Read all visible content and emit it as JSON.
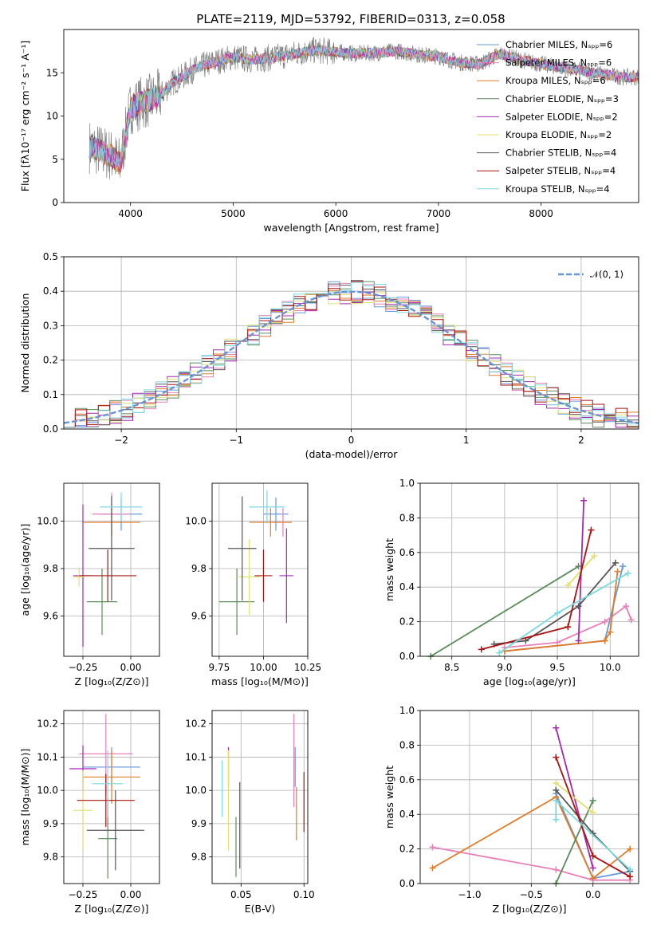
{
  "title": "PLATE=2119, MJD=53792, FIBERID=0313, z=0.058",
  "series_colors": [
    "#6699dd",
    "#e87fb8",
    "#e07b28",
    "#5a8c5a",
    "#a428b0",
    "#e0e070",
    "#555555",
    "#aa1111",
    "#7ad8e0"
  ],
  "chart_data": [
    {
      "id": "spectrum",
      "type": "line",
      "xlabel": "wavelength [Angstrom, rest frame]",
      "ylabel": "Flux [fλ10⁻¹⁷ erg cm⁻² s⁻¹ A⁻¹]",
      "xlim": [
        3350,
        8950
      ],
      "ylim": [
        0,
        20
      ],
      "xticks": [
        "4000",
        "5000",
        "6000",
        "7000",
        "8000"
      ],
      "yticks": [
        "0",
        "5",
        "10",
        "15"
      ],
      "legend_placement": "right",
      "legend": [
        "Chabrier MILES, Nₛₚₚ=6",
        "Salpeter MILES, Nₛₚₚ=6",
        "Kroupa MILES, Nₛₚₚ=6",
        "Chabrier ELODIE, Nₛₚₚ=3",
        "Salpeter ELODIE, Nₛₚₚ=2",
        "Kroupa ELODIE, Nₛₚₚ=2",
        "Chabrier STELIB, Nₛₚₚ=4",
        "Salpeter STELIB, Nₛₚₚ=4",
        "Kroupa STELIB, Nₛₚₚ=4"
      ],
      "data_x": [
        3600,
        3700,
        3800,
        3900,
        4000,
        4100,
        4200,
        4300,
        4400,
        4500,
        4600,
        4800,
        5000,
        5200,
        5400,
        5600,
        5800,
        6000,
        6200,
        6400,
        6600,
        6800,
        7000,
        7200,
        7400,
        7600,
        7800,
        8000,
        8200,
        8400,
        8600,
        8800
      ],
      "data_y": [
        6.5,
        6,
        5.5,
        4.5,
        11,
        11.5,
        11.8,
        12.5,
        13.8,
        14.5,
        15.3,
        16.2,
        16.8,
        16.5,
        16.8,
        17.2,
        17.6,
        17.4,
        17.2,
        17.3,
        17.5,
        17.1,
        16.9,
        16.2,
        16,
        17.2,
        16.5,
        16,
        15.6,
        15.2,
        14.8,
        14.5
      ]
    },
    {
      "id": "residuals",
      "type": "area",
      "xlabel": "(data-model)/error",
      "ylabel": "Normed distribution",
      "xlim": [
        -2.5,
        2.5
      ],
      "ylim": [
        0,
        0.5
      ],
      "xticks": [
        "−2",
        "−1",
        "0",
        "1",
        "2"
      ],
      "yticks": [
        "0.0",
        "0.1",
        "0.2",
        "0.3",
        "0.4",
        "0.5"
      ],
      "grid": true,
      "legend_placement": "top-right",
      "legend": [
        "𝒩(0, 1)"
      ],
      "bins": {
        "start": -2.5,
        "width": 0.1
      },
      "normal": {
        "mean": 0,
        "sigma": 1
      }
    },
    {
      "id": "age-Z",
      "type": "scatter",
      "xlabel": "Z [log₁₀(Z/Z⊙)]",
      "ylabel": "age  [log₁₀(age/yr)]",
      "xlim": [
        -0.35,
        0.15
      ],
      "ylim": [
        9.43,
        10.16
      ],
      "xticks": [
        "−0.25",
        "0.00"
      ],
      "xtick_values": [
        -0.25,
        0.0
      ],
      "yticks": [
        "9.6",
        "9.8",
        "10.0"
      ],
      "ytick_values": [
        9.6,
        9.8,
        10.0
      ],
      "grid": true,
      "points": [
        {
          "x": -0.05,
          "y": 10.03,
          "xerr": 0.11,
          "yerr": 0.07
        },
        {
          "x": -0.1,
          "y": 10.03,
          "xerr": 0.1,
          "yerr": 0.09
        },
        {
          "x": -0.1,
          "y": 9.995,
          "xerr": 0.15,
          "yerr": 0.06
        },
        {
          "x": -0.15,
          "y": 9.66,
          "xerr": 0.08,
          "yerr": 0.14
        },
        {
          "x": -0.25,
          "y": 9.77,
          "xerr": 0.05,
          "yerr": 0.3
        },
        {
          "x": -0.27,
          "y": 9.765,
          "xerr": 0.03,
          "yerr": 0.04
        },
        {
          "x": -0.1,
          "y": 9.885,
          "xerr": 0.12,
          "yerr": 0.22
        },
        {
          "x": -0.12,
          "y": 9.77,
          "xerr": 0.15,
          "yerr": 0.11
        },
        {
          "x": -0.05,
          "y": 10.06,
          "xerr": 0.11,
          "yerr": 0.06
        }
      ]
    },
    {
      "id": "age-mass",
      "type": "scatter",
      "xlabel": "mass [log₁₀(M/M⊙)]",
      "ylabel": "",
      "xlim": [
        9.71,
        10.25
      ],
      "ylim": [
        9.43,
        10.16
      ],
      "xticks": [
        "9.75",
        "10.00",
        "10.25"
      ],
      "xtick_values": [
        9.75,
        10.0,
        10.25
      ],
      "yticks": [
        "9.6",
        "9.8",
        "10.0"
      ],
      "ytick_values": [
        9.6,
        9.8,
        10.0
      ],
      "grid": true,
      "points": [
        {
          "x": 10.07,
          "y": 10.03,
          "xerr": 0.07,
          "yerr": 0.07
        },
        {
          "x": 10.11,
          "y": 9.995,
          "xerr": 0.05,
          "yerr": 0.06
        },
        {
          "x": 10.04,
          "y": 9.995,
          "xerr": 0.12,
          "yerr": 0.06
        },
        {
          "x": 9.85,
          "y": 9.66,
          "xerr": 0.1,
          "yerr": 0.14
        },
        {
          "x": 10.13,
          "y": 9.77,
          "xerr": 0.04,
          "yerr": 0.2
        },
        {
          "x": 9.92,
          "y": 9.765,
          "xerr": 0.06,
          "yerr": 0.16
        },
        {
          "x": 9.88,
          "y": 9.885,
          "xerr": 0.08,
          "yerr": 0.22
        },
        {
          "x": 10.0,
          "y": 9.77,
          "xerr": 0.05,
          "yerr": 0.11
        },
        {
          "x": 10.02,
          "y": 10.06,
          "xerr": 0.1,
          "yerr": 0.07
        }
      ]
    },
    {
      "id": "weight-age",
      "type": "line",
      "xlabel": "age  [log₁₀(age/yr)]",
      "ylabel": "mass weight",
      "xlim": [
        8.2,
        10.27
      ],
      "ylim": [
        0,
        1
      ],
      "xticks": [
        "8.5",
        "9.0",
        "9.5",
        "10.0"
      ],
      "xtick_values": [
        8.5,
        9.0,
        9.5,
        10.0
      ],
      "yticks": [
        "0.0",
        "0.2",
        "0.4",
        "0.6",
        "0.8",
        "1.0"
      ],
      "ytick_values": [
        0,
        0.2,
        0.4,
        0.6,
        0.8,
        1.0
      ],
      "grid": true,
      "series": [
        {
          "x": [
            9.0,
            9.95,
            10.12
          ],
          "y": [
            0.03,
            0.09,
            0.52
          ]
        },
        {
          "x": [
            9.0,
            9.5,
            9.95,
            10.15,
            10.2
          ],
          "y": [
            0.05,
            0.08,
            0.2,
            0.29,
            0.21
          ]
        },
        {
          "x": [
            9.0,
            9.95,
            10.0,
            10.07
          ],
          "y": [
            0.03,
            0.09,
            0.14,
            0.49
          ]
        },
        {
          "x": [
            8.3,
            9.7
          ],
          "y": [
            0.0,
            0.52
          ]
        },
        {
          "x": [
            9.7,
            9.75
          ],
          "y": [
            0.09,
            0.9
          ]
        },
        {
          "x": [
            9.6,
            9.85
          ],
          "y": [
            0.41,
            0.58
          ]
        },
        {
          "x": [
            8.9,
            9.2,
            9.7,
            10.05
          ],
          "y": [
            0.07,
            0.09,
            0.29,
            0.54
          ]
        },
        {
          "x": [
            8.78,
            9.6,
            9.82
          ],
          "y": [
            0.04,
            0.17,
            0.73
          ]
        },
        {
          "x": [
            8.95,
            9.5,
            10.17
          ],
          "y": [
            0.02,
            0.25,
            0.48
          ]
        }
      ]
    },
    {
      "id": "mass-Z",
      "type": "scatter",
      "xlabel": "Z [log₁₀(Z/Z⊙)]",
      "ylabel": "mass [log₁₀(M/M⊙)]",
      "xlim": [
        -0.35,
        0.15
      ],
      "ylim": [
        9.72,
        10.24
      ],
      "xticks": [
        "−0.25",
        "0.00"
      ],
      "xtick_values": [
        -0.25,
        0.0
      ],
      "yticks": [
        "9.8",
        "9.9",
        "10.0",
        "10.1",
        "10.2"
      ],
      "ytick_values": [
        9.8,
        9.9,
        10.0,
        10.1,
        10.2
      ],
      "grid": true,
      "points": [
        {
          "x": -0.1,
          "y": 10.07,
          "xerr": 0.15,
          "yerr": 0.06
        },
        {
          "x": -0.13,
          "y": 10.11,
          "xerr": 0.14,
          "yerr": 0.12
        },
        {
          "x": -0.1,
          "y": 10.04,
          "xerr": 0.15,
          "yerr": 0.08
        },
        {
          "x": -0.12,
          "y": 9.855,
          "xerr": 0.05,
          "yerr": 0.12
        },
        {
          "x": -0.25,
          "y": 10.065,
          "xerr": 0.07,
          "yerr": 0.07
        },
        {
          "x": -0.25,
          "y": 9.94,
          "xerr": 0.05,
          "yerr": 0.12
        },
        {
          "x": -0.08,
          "y": 9.88,
          "xerr": 0.15,
          "yerr": 0.12
        },
        {
          "x": -0.13,
          "y": 9.97,
          "xerr": 0.15,
          "yerr": 0.08
        },
        {
          "x": -0.12,
          "y": 10.02,
          "xerr": 0.08,
          "yerr": 0.1
        }
      ]
    },
    {
      "id": "mass-EBV",
      "type": "scatter",
      "xlabel": "E(B-V)",
      "ylabel": "",
      "xlim": [
        0.027,
        0.103
      ],
      "ylim": [
        9.72,
        10.24
      ],
      "xticks": [
        "0.05",
        "0.10"
      ],
      "xtick_values": [
        0.05,
        0.1
      ],
      "yticks": [
        "9.8",
        "9.9",
        "10.0",
        "10.1",
        "10.2"
      ],
      "ytick_values": [
        9.8,
        9.9,
        10.0,
        10.1,
        10.2
      ],
      "grid": true,
      "points": [
        {
          "x": 0.093,
          "y": 10.07,
          "xerr": 0,
          "yerr": 0.06
        },
        {
          "x": 0.092,
          "y": 10.09,
          "xerr": 0,
          "yerr": 0.14
        },
        {
          "x": 0.094,
          "y": 9.93,
          "xerr": 0,
          "yerr": 0.08
        },
        {
          "x": 0.046,
          "y": 9.83,
          "xerr": 0,
          "yerr": 0.09
        },
        {
          "x": 0.04,
          "y": 10.07,
          "xerr": 0,
          "yerr": 0.06
        },
        {
          "x": 0.04,
          "y": 9.97,
          "xerr": 0,
          "yerr": 0.15
        },
        {
          "x": 0.049,
          "y": 9.895,
          "xerr": 0,
          "yerr": 0.13
        },
        {
          "x": 0.1,
          "y": 9.965,
          "xerr": 0,
          "yerr": 0.09
        },
        {
          "x": 0.035,
          "y": 10.005,
          "xerr": 0,
          "yerr": 0.085
        }
      ]
    },
    {
      "id": "weight-Z",
      "type": "line",
      "xlabel": "Z [log₁₀(Z/Z⊙)]",
      "ylabel": "mass weight",
      "xlim": [
        -1.4,
        0.37
      ],
      "ylim": [
        0,
        1
      ],
      "xticks": [
        "−1.0",
        "−0.5",
        "0.0"
      ],
      "xtick_values": [
        -1.0,
        -0.5,
        0.0
      ],
      "yticks": [
        "0.0",
        "0.2",
        "0.4",
        "0.6",
        "0.8",
        "1.0"
      ],
      "ytick_values": [
        0,
        0.2,
        0.4,
        0.6,
        0.8,
        1.0
      ],
      "grid": true,
      "series": [
        {
          "x": [
            -0.3,
            0.0,
            0.3
          ],
          "y": [
            0.52,
            0.03,
            0.07
          ]
        },
        {
          "x": [
            -1.3,
            -0.3,
            0.0,
            0.3
          ],
          "y": [
            0.21,
            0.08,
            0.02,
            0.02
          ]
        },
        {
          "x": [
            -1.3,
            -0.3,
            0.0,
            0.3
          ],
          "y": [
            0.09,
            0.5,
            0.03,
            0.2
          ]
        },
        {
          "x": [
            -0.3,
            0.0
          ],
          "y": [
            0.0,
            0.48
          ]
        },
        {
          "x": [
            -0.3,
            0.0
          ],
          "y": [
            0.9,
            0.09
          ]
        },
        {
          "x": [
            -0.3,
            0.0
          ],
          "y": [
            0.58,
            0.41
          ]
        },
        {
          "x": [
            -0.3,
            0.0,
            0.3
          ],
          "y": [
            0.54,
            0.29,
            0.07
          ]
        },
        {
          "x": [
            -0.3,
            0.0,
            0.3
          ],
          "y": [
            0.73,
            0.16,
            0.04
          ]
        },
        {
          "x": [
            -0.3,
            -0.3,
            0.3
          ],
          "y": [
            0.37,
            0.48,
            0.08
          ]
        }
      ]
    }
  ]
}
